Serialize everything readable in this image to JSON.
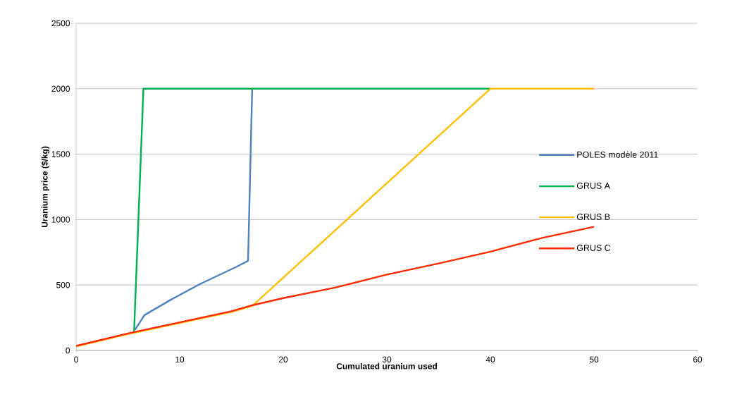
{
  "chart_data": {
    "type": "line",
    "xlabel": "Cumulated uranium used",
    "ylabel": "Uranium price ($/kg)",
    "xlim": [
      0,
      60
    ],
    "xticks": [
      0,
      10,
      20,
      30,
      40,
      50,
      60
    ],
    "ylim": [
      0,
      2500
    ],
    "yticks": [
      0,
      500,
      1000,
      1500,
      2000,
      2500
    ],
    "grid": "y",
    "legend": "right",
    "marker": "none",
    "line_style": "solid",
    "series": [
      {
        "name": "POLES modèle 2011",
        "color": "#4f81bd",
        "x": [
          5.7,
          6.6,
          9.2,
          11.9,
          15.5,
          16.6,
          17.0
        ],
        "values": [
          160,
          270,
          390,
          505,
          640,
          685,
          2000
        ]
      },
      {
        "name": "GRUS A",
        "color": "#00b050",
        "x": [
          5.6,
          6.5,
          40
        ],
        "values": [
          145,
          2000,
          2000
        ]
      },
      {
        "name": "GRUS B",
        "color": "#ffc000",
        "x": [
          0,
          5,
          10,
          15,
          17,
          40,
          50
        ],
        "values": [
          30,
          125,
          210,
          295,
          340,
          2000,
          2000
        ]
      },
      {
        "name": "GRUS C",
        "color": "#ff2a00",
        "x": [
          0,
          5,
          10,
          15,
          17,
          20,
          25,
          30,
          35,
          40,
          45,
          50
        ],
        "values": [
          35,
          130,
          215,
          300,
          345,
          400,
          480,
          580,
          665,
          755,
          860,
          945
        ]
      }
    ]
  }
}
